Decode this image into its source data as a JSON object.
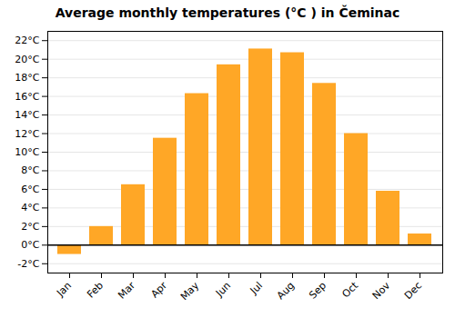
{
  "chart_data": {
    "type": "bar",
    "title": "Average monthly temperatures (°C ) in Čeminac",
    "categories": [
      "Jan",
      "Feb",
      "Mar",
      "Apr",
      "May",
      "Jun",
      "Jul",
      "Aug",
      "Sep",
      "Oct",
      "Nov",
      "Dec"
    ],
    "values": [
      -1.0,
      2.0,
      6.5,
      11.5,
      16.3,
      19.4,
      21.1,
      20.7,
      17.4,
      12.0,
      5.8,
      1.2
    ],
    "color": "#FFA726",
    "ylim": [
      -3,
      23
    ],
    "yticks": [
      {
        "value": -2,
        "label": "-2°C"
      },
      {
        "value": 0,
        "label": "0°C"
      },
      {
        "value": 2,
        "label": "2°C"
      },
      {
        "value": 4,
        "label": "4°C"
      },
      {
        "value": 6,
        "label": "6°C"
      },
      {
        "value": 8,
        "label": "8°C"
      },
      {
        "value": 10,
        "label": "10°C"
      },
      {
        "value": 12,
        "label": "12°C"
      },
      {
        "value": 14,
        "label": "14°C"
      },
      {
        "value": 16,
        "label": "16°C"
      },
      {
        "value": 18,
        "label": "18°C"
      },
      {
        "value": 20,
        "label": "20°C"
      },
      {
        "value": 22,
        "label": "22°C"
      }
    ],
    "grid": true
  }
}
